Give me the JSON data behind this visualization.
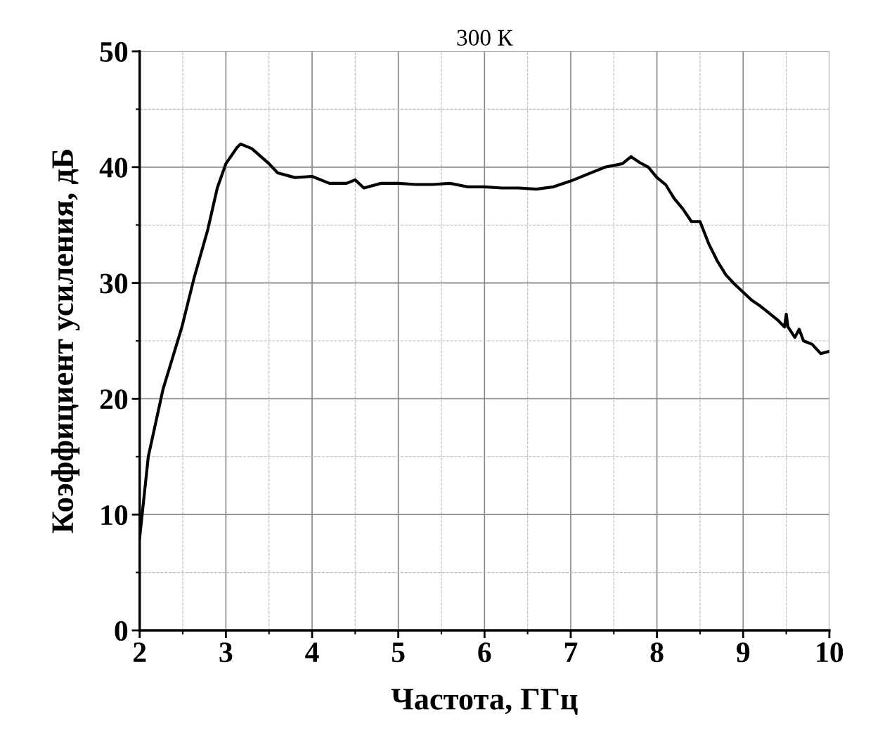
{
  "chart_data": {
    "type": "line",
    "title": "300 К",
    "xlabel": "Частота, ГГц",
    "ylabel": "Коэффициент усиления, дБ",
    "xlim": [
      2,
      10
    ],
    "ylim": [
      0,
      50
    ],
    "xticks": [
      2,
      3,
      4,
      5,
      6,
      7,
      8,
      9,
      10
    ],
    "yticks": [
      0,
      10,
      20,
      30,
      40,
      50
    ],
    "grid": true,
    "legend": false,
    "marker": "none",
    "line_style": "solid",
    "series": [
      {
        "color": "#000000",
        "x": [
          2.0,
          2.1,
          2.27,
          2.49,
          2.63,
          2.79,
          2.9,
          3.0,
          3.13,
          3.17,
          3.3,
          3.5,
          3.6,
          3.8,
          4.0,
          4.2,
          4.4,
          4.5,
          4.6,
          4.8,
          5.0,
          5.2,
          5.4,
          5.6,
          5.8,
          6.0,
          6.2,
          6.4,
          6.6,
          6.8,
          7.0,
          7.2,
          7.4,
          7.6,
          7.7,
          7.8,
          7.9,
          8.0,
          8.1,
          8.2,
          8.3,
          8.4,
          8.5,
          8.6,
          8.7,
          8.8,
          8.9,
          9.0,
          9.1,
          9.2,
          9.3,
          9.4,
          9.48,
          9.5,
          9.52,
          9.6,
          9.65,
          9.7,
          9.8,
          9.9,
          10.0
        ],
        "values": [
          8,
          15,
          20.8,
          26.2,
          30.4,
          34.6,
          38.2,
          40.3,
          41.7,
          42,
          41.6,
          40.3,
          39.5,
          39.1,
          39.2,
          38.6,
          38.6,
          38.9,
          38.2,
          38.6,
          38.6,
          38.5,
          38.5,
          38.6,
          38.3,
          38.3,
          38.2,
          38.2,
          38.1,
          38.3,
          38.8,
          39.4,
          40.0,
          40.3,
          40.9,
          40.4,
          40.0,
          39.1,
          38.5,
          37.3,
          36.4,
          35.3,
          35.3,
          33.4,
          31.9,
          30.7,
          29.9,
          29.2,
          28.5,
          28.0,
          27.4,
          26.8,
          26.2,
          27.3,
          26.2,
          25.3,
          26.0,
          25.0,
          24.7,
          23.9,
          24.1
        ]
      }
    ]
  }
}
